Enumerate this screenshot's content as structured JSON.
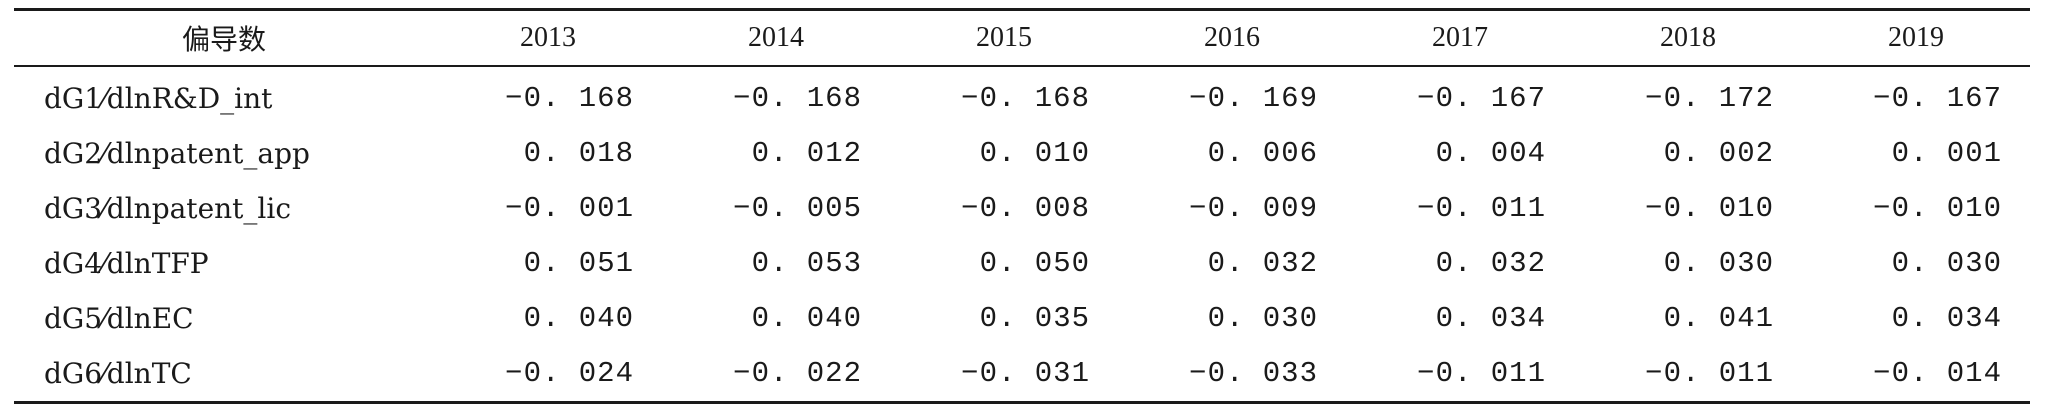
{
  "table": {
    "corner_header": "偏导数",
    "years": [
      "2013",
      "2014",
      "2015",
      "2016",
      "2017",
      "2018",
      "2019"
    ],
    "rows": [
      {
        "label": "dG1⁄dlnR&D_int",
        "values": [
          "−0. 168",
          "−0. 168",
          "−0. 168",
          "−0. 169",
          "−0. 167",
          "−0. 172",
          "−0. 167"
        ]
      },
      {
        "label": "dG2⁄dlnpatent_app",
        "values": [
          "0. 018",
          "0. 012",
          "0. 010",
          "0. 006",
          "0. 004",
          "0. 002",
          "0. 001"
        ]
      },
      {
        "label": "dG3⁄dlnpatent_lic",
        "values": [
          "−0. 001",
          "−0. 005",
          "−0. 008",
          "−0. 009",
          "−0. 011",
          "−0. 010",
          "−0. 010"
        ]
      },
      {
        "label": "dG4⁄dlnTFP",
        "values": [
          "0. 051",
          "0. 053",
          "0. 050",
          "0. 032",
          "0. 032",
          "0. 030",
          "0. 030"
        ]
      },
      {
        "label": "dG5⁄dlnEC",
        "values": [
          "0. 040",
          "0. 040",
          "0. 035",
          "0. 030",
          "0. 034",
          "0. 041",
          "0. 034"
        ]
      },
      {
        "label": "dG6⁄dlnTC",
        "values": [
          "−0. 024",
          "−0. 022",
          "−0. 031",
          "−0. 033",
          "−0. 011",
          "−0. 011",
          "−0. 014"
        ]
      }
    ]
  }
}
